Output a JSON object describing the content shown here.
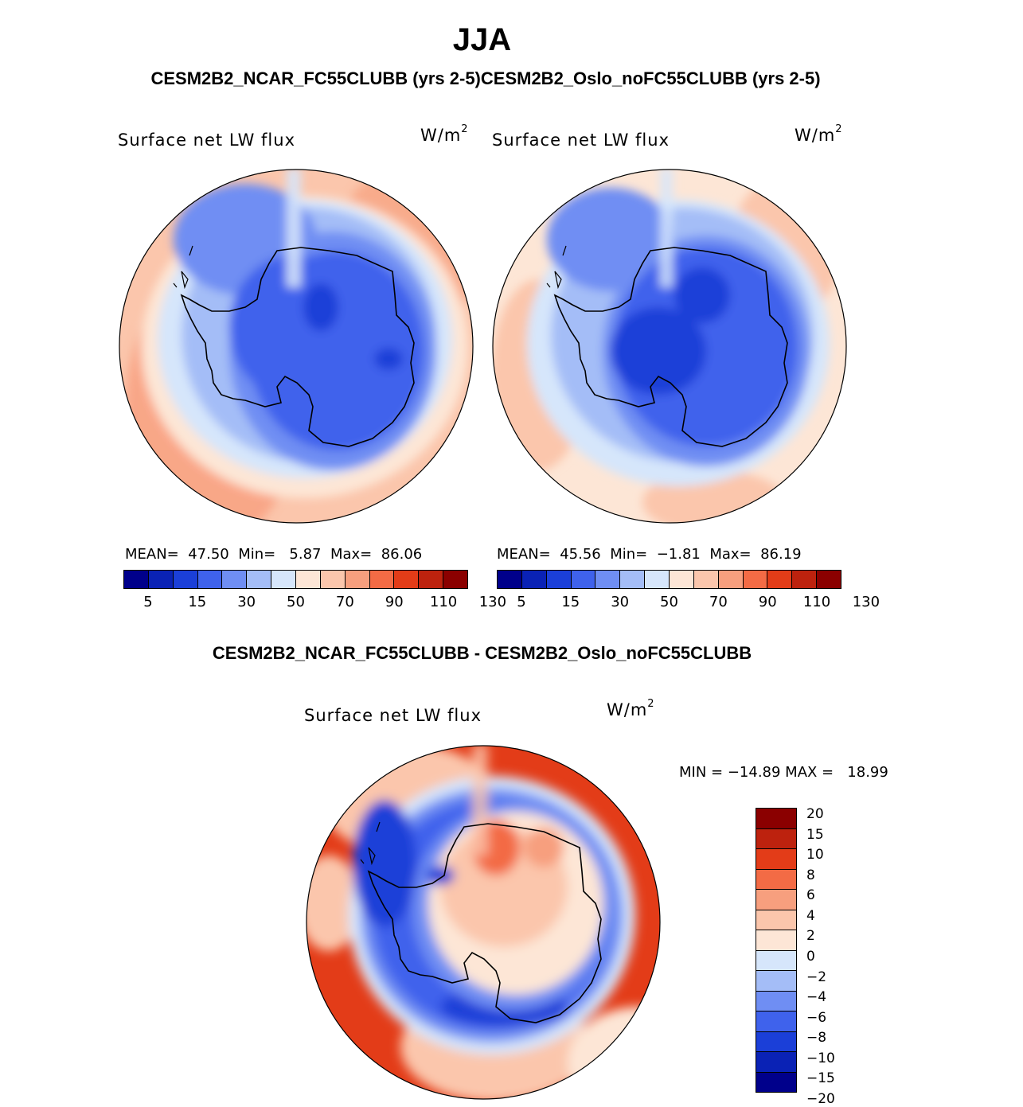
{
  "season": "JJA",
  "cases_title": "CESM2B2_NCAR_FC55CLUBB (yrs 2-5)CESM2B2_Oslo_noFC55CLUBB (yrs 2-5)",
  "diff_title": "CESM2B2_NCAR_FC55CLUBB - CESM2B2_Oslo_noFC55CLUBB",
  "panels": [
    {
      "variable": "Surface net LW flux",
      "units_base": "W/m",
      "units_exp": "2",
      "mean_label": "MEAN=",
      "mean_value": "47.50",
      "min_label": "Min=",
      "min_value": "5.87",
      "max_label": "Max=",
      "max_value": "86.06"
    },
    {
      "variable": "Surface net LW flux",
      "units_base": "W/m",
      "units_exp": "2",
      "mean_label": "MEAN=",
      "mean_value": "45.56",
      "min_label": "Min=",
      "min_value": "−1.81",
      "max_label": "Max=",
      "max_value": "86.19"
    }
  ],
  "abs_colorbar": {
    "colors": [
      "#00008b",
      "#0a22b5",
      "#1b3fd8",
      "#3f62ec",
      "#6f8ef3",
      "#a4bdf7",
      "#d6e6fb",
      "#fde6d6",
      "#fbc6ac",
      "#f79f7e",
      "#f36b45",
      "#e33c18",
      "#bd220e",
      "#8b0000"
    ],
    "labels": [
      "5",
      "15",
      "30",
      "50",
      "70",
      "90",
      "110",
      "130"
    ]
  },
  "diff_panel": {
    "variable": "Surface net LW flux",
    "units_base": "W/m",
    "units_exp": "2",
    "minmax_text": "MIN = −14.89 MAX =   18.99"
  },
  "diff_colorbar": {
    "colors": [
      "#8b0000",
      "#bd220e",
      "#e33c18",
      "#f36b45",
      "#f79f7e",
      "#fbc6ac",
      "#fde6d6",
      "#d6e6fb",
      "#a4bdf7",
      "#6f8ef3",
      "#3f62ec",
      "#1b3fd8",
      "#0a22b5",
      "#00008b"
    ],
    "labels": [
      "20",
      "15",
      "10",
      "8",
      "6",
      "4",
      "2",
      "0",
      "−2",
      "−4",
      "−6",
      "−8",
      "−10",
      "−15",
      "−20"
    ]
  }
}
